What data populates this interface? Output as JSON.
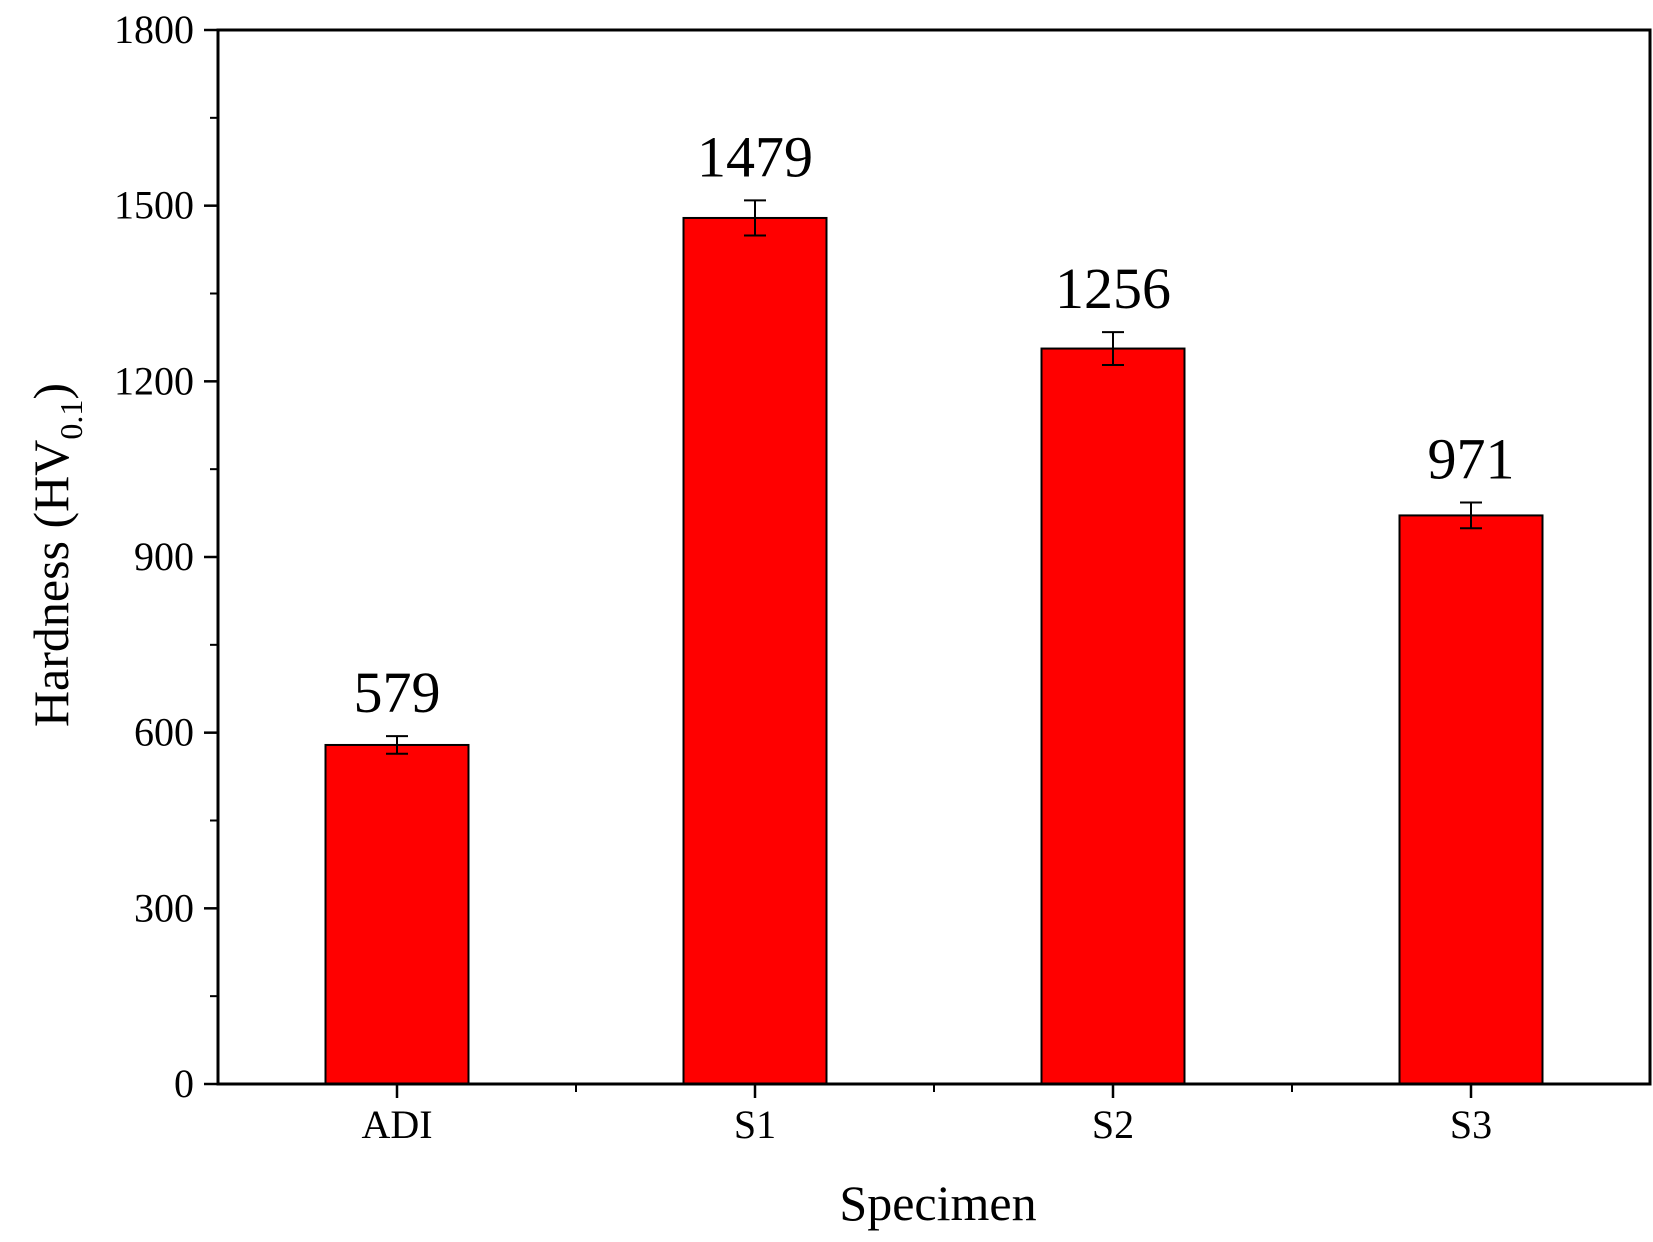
{
  "chart_data": {
    "type": "bar",
    "categories": [
      "ADI",
      "S1",
      "S2",
      "S3"
    ],
    "values": [
      579,
      1479,
      1256,
      971
    ],
    "errors": [
      15,
      30,
      28,
      22
    ],
    "data_labels": [
      "579",
      "1479",
      "1256",
      "971"
    ],
    "xlabel": "Specimen",
    "ylabel_main": "Hardness (HV",
    "ylabel_sub": "0.1",
    "ylabel_close": ")",
    "ylim": [
      0,
      1800
    ],
    "yticks": [
      0,
      300,
      600,
      900,
      1200,
      1500,
      1800
    ],
    "ytick_labels": [
      "0",
      "300",
      "600",
      "900",
      "1200",
      "1500",
      "1800"
    ],
    "bar_color": "#ff0000",
    "grid": false,
    "legend": "none"
  }
}
